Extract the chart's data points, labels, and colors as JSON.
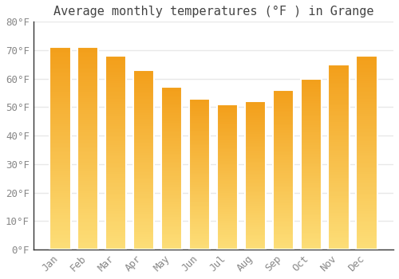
{
  "title": "Average monthly temperatures (°F ) in Grange",
  "months": [
    "Jan",
    "Feb",
    "Mar",
    "Apr",
    "May",
    "Jun",
    "Jul",
    "Aug",
    "Sep",
    "Oct",
    "Nov",
    "Dec"
  ],
  "values": [
    71,
    71,
    68,
    63,
    57,
    53,
    51,
    52,
    56,
    60,
    65,
    68
  ],
  "bar_color_top": "#F5A623",
  "bar_color_bottom": "#FDD878",
  "bar_edge_color": "#FFFFFF",
  "background_color": "#FFFFFF",
  "plot_bg_color": "#FFFFFF",
  "grid_color": "#E8E8E8",
  "ylim": [
    0,
    80
  ],
  "yticks": [
    0,
    10,
    20,
    30,
    40,
    50,
    60,
    70,
    80
  ],
  "title_fontsize": 11,
  "tick_fontsize": 9,
  "tick_color": "#888888",
  "title_color": "#444444",
  "font_family": "monospace",
  "bar_width": 0.75
}
